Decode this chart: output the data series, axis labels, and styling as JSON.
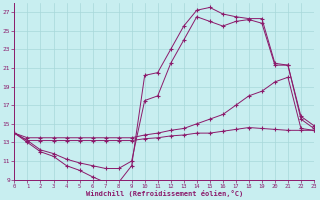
{
  "xlabel": "Windchill (Refroidissement éolien,°C)",
  "background_color": "#c8eef0",
  "line_color": "#8b1a6b",
  "grid_color": "#a8d8da",
  "line1_x": [
    0,
    1,
    2,
    3,
    4,
    5,
    6,
    7,
    8,
    9,
    10,
    11,
    12,
    13,
    14,
    15,
    16,
    17,
    18,
    19,
    20,
    21,
    22,
    23
  ],
  "line1_y": [
    14,
    13,
    12,
    11.5,
    10.5,
    10,
    9.3,
    8.7,
    8.7,
    10.5,
    20.2,
    20.5,
    23,
    25.5,
    27.2,
    27.5,
    26.8,
    26.5,
    26.3,
    26.3,
    21.5,
    21.3,
    15.8,
    14.8
  ],
  "line2_x": [
    0,
    1,
    2,
    3,
    4,
    5,
    6,
    7,
    8,
    9,
    10,
    11,
    12,
    13,
    14,
    15,
    16,
    17,
    18,
    19,
    20,
    21,
    22,
    23
  ],
  "line2_y": [
    14,
    13.2,
    12.2,
    11.8,
    11.2,
    10.8,
    10.5,
    10.2,
    10.2,
    11.0,
    17.5,
    18.0,
    21.5,
    24.0,
    26.5,
    26.0,
    25.5,
    26.0,
    26.2,
    25.8,
    21.3,
    21.3,
    15.5,
    14.5
  ],
  "line3_x": [
    0,
    1,
    2,
    3,
    4,
    5,
    6,
    7,
    8,
    9,
    10,
    11,
    12,
    13,
    14,
    15,
    16,
    17,
    18,
    19,
    20,
    21,
    22,
    23
  ],
  "line3_y": [
    14,
    13.5,
    13.5,
    13.5,
    13.5,
    13.5,
    13.5,
    13.5,
    13.5,
    13.5,
    13.8,
    14.0,
    14.3,
    14.5,
    15.0,
    15.5,
    16.0,
    17.0,
    18.0,
    18.5,
    19.5,
    20.0,
    14.5,
    14.3
  ],
  "line4_x": [
    0,
    1,
    2,
    3,
    4,
    5,
    6,
    7,
    8,
    9,
    10,
    11,
    12,
    13,
    14,
    15,
    16,
    17,
    18,
    19,
    20,
    21,
    22,
    23
  ],
  "line4_y": [
    14.0,
    13.2,
    13.2,
    13.2,
    13.2,
    13.2,
    13.2,
    13.2,
    13.2,
    13.2,
    13.4,
    13.5,
    13.7,
    13.8,
    14.0,
    14.0,
    14.2,
    14.4,
    14.6,
    14.5,
    14.4,
    14.3,
    14.3,
    14.3
  ],
  "ylim": [
    9,
    28
  ],
  "xlim": [
    0,
    23
  ],
  "yticks": [
    9,
    11,
    13,
    15,
    17,
    19,
    21,
    23,
    25,
    27
  ],
  "xticks": [
    0,
    1,
    2,
    3,
    4,
    5,
    6,
    7,
    8,
    9,
    10,
    11,
    12,
    13,
    14,
    15,
    16,
    17,
    18,
    19,
    20,
    21,
    22,
    23
  ]
}
